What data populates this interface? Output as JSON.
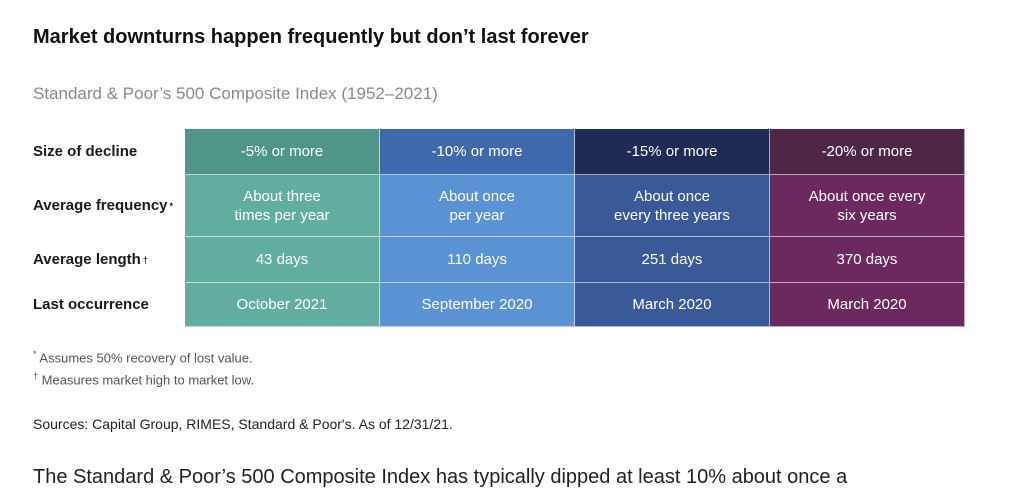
{
  "title": "Market downturns happen frequently but don’t last forever",
  "subtitle": "Standard & Poor’s 500 Composite Index (1952–2021)",
  "table": {
    "row_labels": [
      {
        "label": "Size of decline",
        "mark": ""
      },
      {
        "label": "Average frequency",
        "mark": "*"
      },
      {
        "label": "Average length",
        "mark": "†"
      },
      {
        "label": "Last occurrence",
        "mark": ""
      }
    ],
    "columns": [
      {
        "decline": "-5% or more",
        "frequency": "About three\ntimes per year",
        "length": "43 days",
        "last": "October 2021",
        "colors": {
          "header": "#4f9688",
          "body": "#61aea0"
        }
      },
      {
        "decline": "-10% or more",
        "frequency": "About once\nper year",
        "length": "110 days",
        "last": "September 2020",
        "colors": {
          "header": "#3f69ad",
          "body": "#5b92d3"
        }
      },
      {
        "decline": "-15% or more",
        "frequency": "About once\nevery three years",
        "length": "251 days",
        "last": "March 2020",
        "colors": {
          "header": "#1f2a55",
          "body": "#3a5998"
        }
      },
      {
        "decline": "-20% or more",
        "frequency": "About once every\nsix years",
        "length": "370 days",
        "last": "March 2020",
        "colors": {
          "header": "#4e2748",
          "body": "#6c2960"
        }
      }
    ]
  },
  "notes": [
    {
      "mark": "*",
      "text": "Assumes 50% recovery of lost value."
    },
    {
      "mark": "†",
      "text": "Measures market high to market low."
    }
  ],
  "sources": "Sources: Capital Group, RIMES, Standard & Poor's. As of 12/31/21.",
  "body_text": "The Standard & Poor’s 500 Composite Index has typically dipped at least 10% about once a"
}
